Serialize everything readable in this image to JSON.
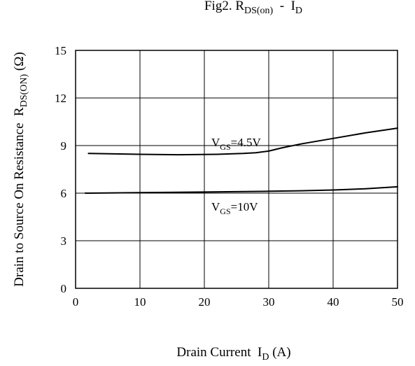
{
  "chart_data": {
    "type": "line",
    "title": "Fig2. R",
    "title_sub": "DS(on)",
    "title_sep": "  -  ",
    "title_tail": "I",
    "title_tail_sub": "D",
    "xlabel": "Drain Current  I",
    "xlabel_sub": "D",
    "xlabel_unit": " (A)",
    "ylabel": "Drain to Source On Resistance  R",
    "ylabel_sub": "DS(ON)",
    "ylabel_unit": " (Ω)",
    "xlim": [
      0,
      50
    ],
    "ylim": [
      0,
      15
    ],
    "xticks": [
      "0",
      "10",
      "20",
      "30",
      "40",
      "50"
    ],
    "yticks": [
      "0",
      "3",
      "6",
      "9",
      "12",
      "15"
    ],
    "grid": true,
    "series": [
      {
        "name": "VGS=4.5V",
        "label_main": "V",
        "label_sub": "GS",
        "label_tail": "=4.5V",
        "x": [
          2,
          10,
          16,
          22,
          26,
          28,
          30,
          32,
          35,
          40,
          45,
          50
        ],
        "y": [
          8.5,
          8.45,
          8.42,
          8.45,
          8.5,
          8.55,
          8.65,
          8.85,
          9.1,
          9.45,
          9.8,
          10.1
        ]
      },
      {
        "name": "VGS=10V",
        "label_main": "V",
        "label_sub": "GS",
        "label_tail": "=10V",
        "x": [
          1.5,
          10,
          20,
          30,
          35,
          40,
          45,
          50
        ],
        "y": [
          6.0,
          6.03,
          6.07,
          6.12,
          6.15,
          6.2,
          6.28,
          6.4
        ]
      }
    ]
  }
}
